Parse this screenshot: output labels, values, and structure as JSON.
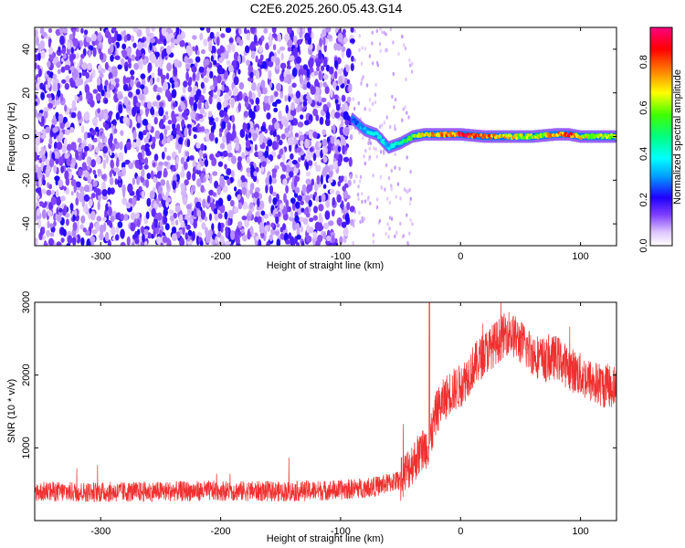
{
  "title": "C2E6.2025.260.05.43.G14",
  "chart_data": [
    {
      "type": "heatmap",
      "xlabel": "Height of straight line (km)",
      "ylabel": "Frequency (Hz)",
      "xlim": [
        -355,
        130
      ],
      "ylim": [
        -50,
        50
      ],
      "xticks": [
        -300,
        -200,
        -100,
        0,
        100
      ],
      "yticks": [
        -40,
        -20,
        0,
        20,
        40
      ],
      "noise_region_x": [
        -355,
        -90
      ],
      "signal_ridge": {
        "x": [
          -90,
          -80,
          -70,
          -60,
          -50,
          -40,
          -30,
          -20,
          -10,
          0,
          20,
          40,
          60,
          80,
          90,
          100,
          130
        ],
        "y": [
          8,
          3,
          1,
          -5,
          -3,
          0,
          1,
          1,
          1,
          1,
          0,
          0,
          0,
          1,
          1,
          0,
          0
        ],
        "amplitude": [
          0.25,
          0.35,
          0.45,
          0.35,
          0.5,
          0.6,
          0.7,
          0.75,
          0.8,
          0.9,
          0.85,
          0.7,
          0.65,
          0.75,
          0.9,
          0.7,
          0.6
        ]
      },
      "colorbar": {
        "label": "Normalized spectral amplitude",
        "range": [
          0.0,
          0.95
        ],
        "ticks": [
          "0.0",
          "0.2",
          "0.4",
          "0.6",
          "0.8"
        ]
      }
    },
    {
      "type": "line",
      "xlabel": "Height of straight line (km)",
      "ylabel": "SNR (10 * v/v)",
      "xlim": [
        -355,
        130
      ],
      "ylim": [
        0,
        3000
      ],
      "xticks": [
        -300,
        -200,
        -100,
        0,
        100
      ],
      "yticks": [
        1000,
        2000,
        3000
      ],
      "color": "#f03030",
      "series": [
        {
          "x": [
            -355,
            -300,
            -250,
            -200,
            -150,
            -100,
            -70,
            -50,
            -40,
            -30,
            -26,
            -20,
            -10,
            0,
            10,
            20,
            30,
            40,
            50,
            60,
            70,
            80,
            90,
            100,
            110,
            120,
            130
          ],
          "y": [
            400,
            390,
            400,
            410,
            400,
            420,
            470,
            560,
            800,
            1000,
            1050,
            1500,
            1750,
            1850,
            2100,
            2300,
            2450,
            2600,
            2450,
            2300,
            2200,
            2250,
            2100,
            2000,
            1900,
            1850,
            1850
          ]
        }
      ],
      "spike": {
        "x": -26,
        "y": 3000
      },
      "noise_amplitude": 140
    }
  ]
}
